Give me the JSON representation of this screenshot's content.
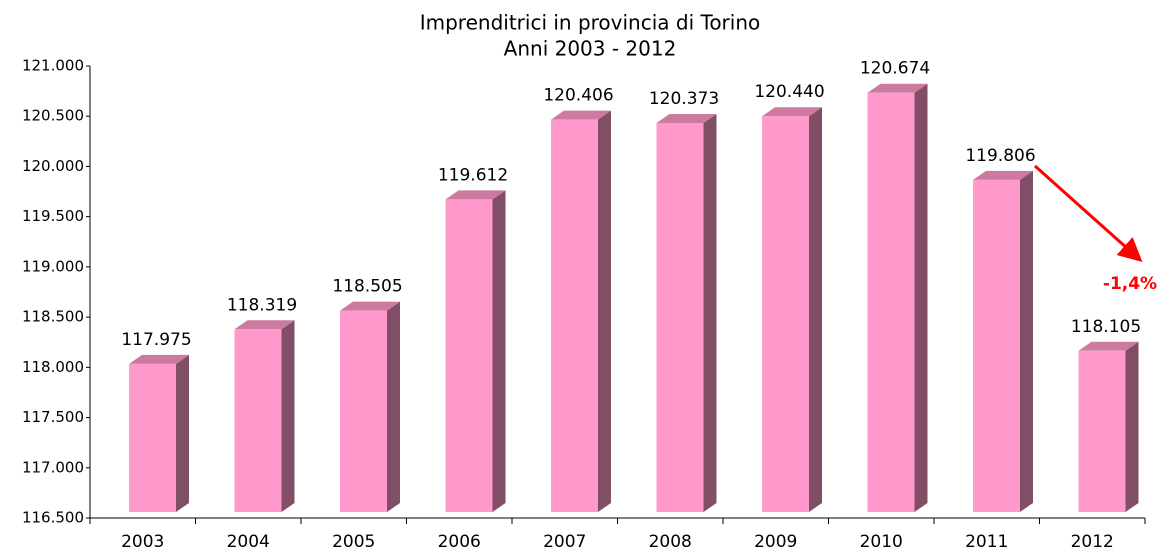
{
  "chart_data": {
    "type": "bar",
    "title": "Imprenditrici in provincia di Torino",
    "subtitle": "Anni 2003 - 2012",
    "annotation": "-1,4%",
    "categories": [
      "2003",
      "2004",
      "2005",
      "2006",
      "2007",
      "2008",
      "2009",
      "2010",
      "2011",
      "2012"
    ],
    "values": [
      117975,
      118319,
      118505,
      119612,
      120406,
      120373,
      120440,
      120674,
      119806,
      118105
    ],
    "value_labels": [
      "117.975",
      "118.319",
      "118.505",
      "119.612",
      "120.406",
      "120.373",
      "120.440",
      "120.674",
      "119.806",
      "118.105"
    ],
    "color": "#ff99cc",
    "ylim": [
      116500,
      121000
    ],
    "yticks": [
      {
        "value": 116500,
        "label": "116.500"
      },
      {
        "value": 117000,
        "label": "117.000"
      },
      {
        "value": 117500,
        "label": "117.500"
      },
      {
        "value": 118000,
        "label": "118.000"
      },
      {
        "value": 118500,
        "label": "118.500"
      },
      {
        "value": 119000,
        "label": "119.000"
      },
      {
        "value": 119500,
        "label": "119.500"
      },
      {
        "value": 120000,
        "label": "120.000"
      },
      {
        "value": 120500,
        "label": "120.500"
      },
      {
        "value": 121000,
        "label": "121.000"
      }
    ],
    "grid": false
  }
}
